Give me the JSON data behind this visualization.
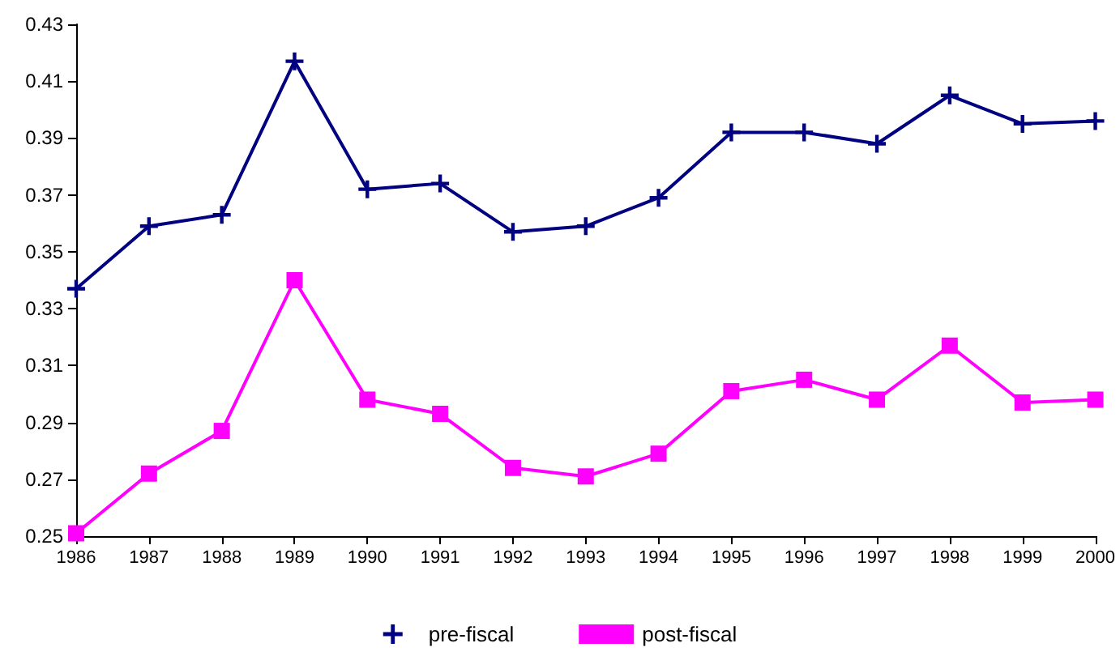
{
  "chart_data": {
    "type": "line",
    "categories": [
      "1986",
      "1987",
      "1988",
      "1989",
      "1990",
      "1991",
      "1992",
      "1993",
      "1994",
      "1995",
      "1996",
      "1997",
      "1998",
      "1999",
      "2000"
    ],
    "series": [
      {
        "name": "pre-fiscal",
        "color": "#000080",
        "marker": "cross",
        "values": [
          0.337,
          0.359,
          0.363,
          0.417,
          0.372,
          0.374,
          0.357,
          0.359,
          0.369,
          0.392,
          0.392,
          0.388,
          0.405,
          0.395,
          0.396
        ]
      },
      {
        "name": "post-fiscal",
        "color": "#ff00ff",
        "marker": "square",
        "values": [
          0.251,
          0.272,
          0.287,
          0.34,
          0.298,
          0.293,
          0.274,
          0.271,
          0.279,
          0.301,
          0.305,
          0.298,
          0.317,
          0.297,
          0.298
        ]
      }
    ],
    "ylim": [
      0.25,
      0.43
    ],
    "yticks": [
      0.25,
      0.27,
      0.29,
      0.31,
      0.33,
      0.35,
      0.37,
      0.39,
      0.41,
      0.43
    ],
    "grid": false,
    "legend": "bottom",
    "line_style": "solid"
  }
}
